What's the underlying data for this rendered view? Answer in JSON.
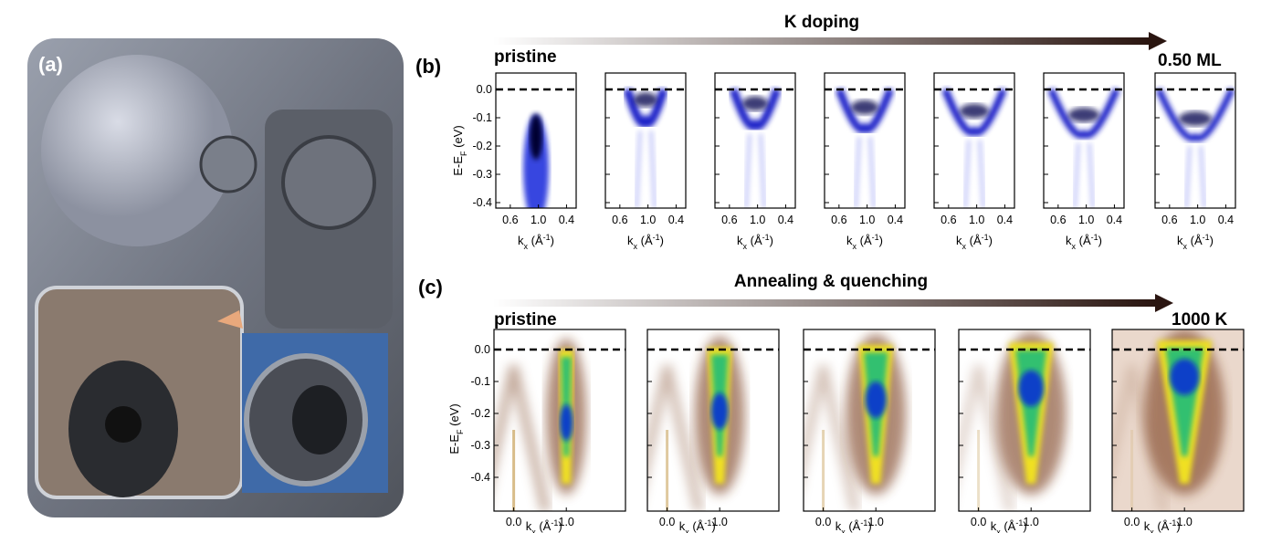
{
  "figure": {
    "a": {
      "label": "(a)"
    },
    "b": {
      "label": "(b)",
      "arrow_label": "K doping",
      "start_label": "pristine",
      "end_label": "0.50 ML",
      "y_label": {
        "main": "E-E",
        "sub": "F",
        "unit": " (eV)"
      },
      "yticks": [
        "0.0",
        "-0.1",
        "-0.2",
        "-0.3",
        "-0.4"
      ],
      "xticks": [
        "0.6",
        "1.0",
        "0.4"
      ],
      "x_label": {
        "main": "k",
        "sub": "x",
        "unit": " (Å",
        "sup": "-1",
        "close": ")"
      }
    },
    "c": {
      "label": "(c)",
      "arrow_label": "Annealing & quenching",
      "start_label": "pristine",
      "end_label": "1000 K",
      "y_label": {
        "main": "E-E",
        "sub": "F",
        "unit": " (eV)"
      },
      "yticks": [
        "0.0",
        "-0.1",
        "-0.2",
        "-0.3",
        "-0.4"
      ],
      "xticks": [
        "0.0",
        "1.0"
      ],
      "x_label": {
        "main": "k",
        "sub": "x",
        "unit": " (Å",
        "sup": "-1",
        "close": ")"
      }
    }
  }
}
